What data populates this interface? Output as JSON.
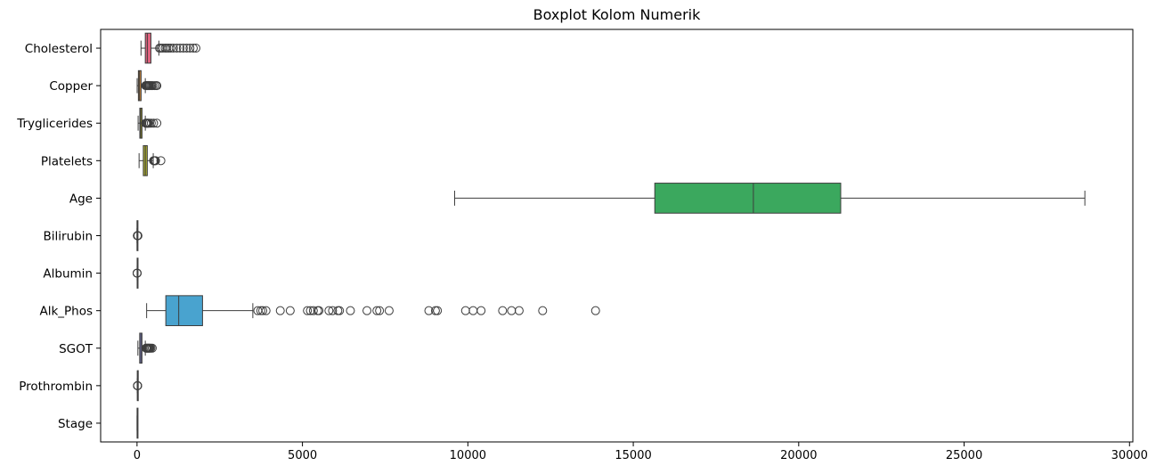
{
  "chart_data": {
    "type": "boxplot",
    "orientation": "horizontal",
    "title": "Boxplot Kolom Numerik",
    "xlabel": "",
    "ylabel": "",
    "xlim": [
      -1100,
      30100
    ],
    "xticks": [
      0,
      5000,
      10000,
      15000,
      20000,
      25000,
      30000
    ],
    "xtick_labels": [
      "0",
      "5000",
      "10000",
      "15000",
      "20000",
      "25000",
      "30000"
    ],
    "grid": false,
    "legend": "none",
    "series": [
      {
        "name": "Cholesterol",
        "color": "#e0637f",
        "whisker_low": 120,
        "q1": 250,
        "median": 310,
        "q3": 420,
        "whisker_high": 660,
        "outliers": [
          680,
          720,
          780,
          850,
          900,
          960,
          1020,
          1100,
          1200,
          1300,
          1400,
          1500,
          1600,
          1700,
          1780
        ]
      },
      {
        "name": "Copper",
        "color": "#c9853a",
        "whisker_low": 4,
        "q1": 41,
        "median": 73,
        "q3": 123,
        "whisker_high": 250,
        "outliers": [
          260,
          280,
          300,
          320,
          340,
          360,
          380,
          410,
          440,
          470,
          520,
          570,
          600
        ]
      },
      {
        "name": "Tryglicerides",
        "color": "#9c9a2e",
        "whisker_low": 33,
        "q1": 84,
        "median": 108,
        "q3": 151,
        "whisker_high": 250,
        "outliers": [
          260,
          280,
          300,
          320,
          340,
          380,
          430,
          500,
          600
        ]
      },
      {
        "name": "Platelets",
        "color": "#a6a82e",
        "whisker_low": 62,
        "q1": 190,
        "median": 250,
        "q3": 310,
        "whisker_high": 490,
        "outliers": [
          500,
          520,
          540,
          560,
          720
        ]
      },
      {
        "name": "Age",
        "color": "#3ba85e",
        "whisker_low": 9600,
        "q1": 15650,
        "median": 18630,
        "q3": 21270,
        "whisker_high": 28650,
        "outliers": []
      },
      {
        "name": "Bilirubin",
        "color": "#3bab8f",
        "whisker_low": 0.3,
        "q1": 0.8,
        "median": 1.4,
        "q3": 3.4,
        "whisker_high": 7.9,
        "outliers": [
          10,
          14,
          18,
          22,
          28
        ]
      },
      {
        "name": "Albumin",
        "color": "#39a9a8",
        "whisker_low": 2.4,
        "q1": 3.3,
        "median": 3.5,
        "q3": 3.8,
        "whisker_high": 4.6,
        "outliers": [
          1.9,
          2.0,
          4.6
        ]
      },
      {
        "name": "Alk_Phos",
        "color": "#49a3cf",
        "whisker_low": 290,
        "q1": 870,
        "median": 1260,
        "q3": 1980,
        "whisker_high": 3500,
        "outliers": [
          3650,
          3740,
          3800,
          3900,
          4330,
          4630,
          5150,
          5240,
          5330,
          5460,
          5500,
          5800,
          5910,
          6070,
          6120,
          6450,
          6950,
          7250,
          7330,
          7620,
          8820,
          9020,
          9080,
          9930,
          10160,
          10400,
          11050,
          11320,
          11550,
          12260,
          13860
        ]
      },
      {
        "name": "SGOT",
        "color": "#8e8fe3",
        "whisker_low": 26,
        "q1": 80,
        "median": 115,
        "q3": 150,
        "whisker_high": 250,
        "outliers": [
          270,
          290,
          310,
          330,
          350,
          370,
          390,
          420,
          460
        ]
      },
      {
        "name": "Prothrombin",
        "color": "#c479e0",
        "whisker_low": 9,
        "q1": 10,
        "median": 10.6,
        "q3": 11.1,
        "whisker_high": 12.5,
        "outliers": [
          13,
          14,
          15,
          17,
          18
        ]
      },
      {
        "name": "Stage",
        "color": "#e27dc2",
        "whisker_low": 1,
        "q1": 2,
        "median": 3,
        "q3": 4,
        "whisker_high": 4,
        "outliers": []
      }
    ]
  }
}
